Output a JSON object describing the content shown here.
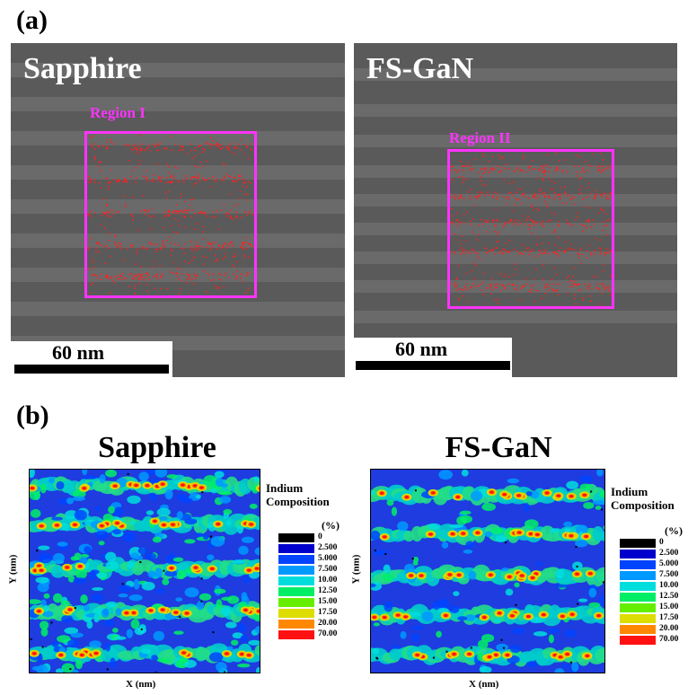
{
  "panel_a": {
    "label": "(a)",
    "left": {
      "title": "Sapphire",
      "region": "Region I",
      "scale": "60 nm"
    },
    "right": {
      "title": "FS-GaN",
      "region": "Region II",
      "scale": "60 nm"
    }
  },
  "panel_b": {
    "label": "(b)",
    "left": {
      "title": "Sapphire",
      "xlabel": "X (nm)",
      "ylabel": "Y (nm)"
    },
    "right": {
      "title": "FS-GaN",
      "xlabel": "X (nm)",
      "ylabel": "Y (nm)"
    },
    "legend": {
      "heading_1": "Indium",
      "heading_2": "Composition",
      "unit": "(%)",
      "levels": [
        "0",
        "2.500",
        "5.000",
        "7.500",
        "10.00",
        "12.50",
        "15.00",
        "17.50",
        "20.00",
        "70.00"
      ],
      "colors": [
        "#000000",
        "#0000cc",
        "#0044ff",
        "#0099ff",
        "#00dddd",
        "#00ee66",
        "#66ee00",
        "#dddd00",
        "#ff8800",
        "#ff1111"
      ]
    }
  }
}
